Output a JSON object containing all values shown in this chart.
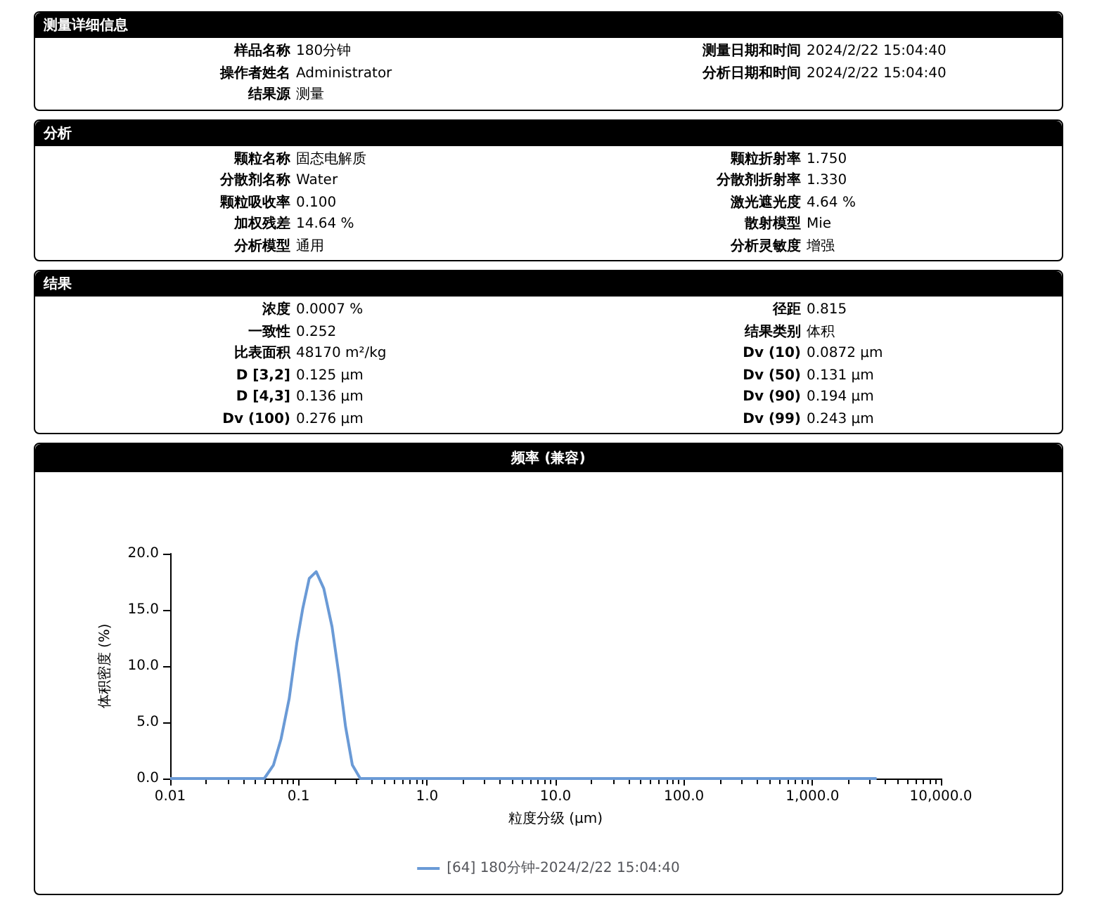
{
  "chart_data": [
    {
      "type": "other",
      "title": "测量详细信息",
      "annotations": [
        "样品名称",
        "180分钟",
        "测量日期和时间",
        "2024/2/22 15:04:40",
        "操作者姓名",
        "Administrator",
        "分析日期和时间",
        "2024/2/22 15:04:40",
        "结果源",
        "测量"
      ]
    },
    {
      "type": "other",
      "title": "分析",
      "annotations": [
        "颗粒名称",
        "固态电解质",
        "颗粒折射率",
        "1.750",
        "分散剂名称",
        "Water",
        "分散剂折射率",
        "1.330",
        "颗粒吸收率",
        "0.100",
        "激光遮光度",
        "4.64 %",
        "加权残差",
        "14.64 %",
        "散射模型",
        "Mie",
        "分析模型",
        "通用",
        "分析灵敏度",
        "增强"
      ]
    },
    {
      "type": "other",
      "title": "结果",
      "annotations": [
        "浓度",
        "0.0007 %",
        "径距",
        "0.815",
        "一致性",
        "0.252",
        "结果类别",
        "体积",
        "比表面积",
        "48170 m²/kg",
        "Dv  (10)",
        "0.0872 μm",
        "D [3,2]",
        "0.125 μm",
        "Dv  (50)",
        "0.131 μm",
        "D [4,3]",
        "0.136 μm",
        "Dv  (90)",
        "0.194 μm",
        "Dv  (100)",
        "0.276 μm",
        "Dv  (99)",
        "0.243 μm"
      ]
    },
    {
      "type": "line",
      "title": "频率 (兼容)",
      "xlabel": "粒度分级 (μm)",
      "ylabel": "体积密度 (%)",
      "log": "x",
      "marker": "none",
      "line_style": "solid",
      "grid": false,
      "legend": "bottom",
      "xlim": [
        0.01,
        10000
      ],
      "xticks": [
        0.01,
        0.1,
        {
          "value": 1,
          "label": "1.0"
        },
        {
          "value": 10,
          "label": "10.0"
        },
        {
          "value": 100,
          "label": "100.0"
        },
        {
          "value": 1000,
          "label": "1,000.0"
        },
        {
          "value": 10000,
          "label": "10,000.0"
        }
      ],
      "ylim": [
        0,
        20
      ],
      "yticks": [
        {
          "value": 0,
          "label": "0.0"
        },
        {
          "value": 5,
          "label": "5.0"
        },
        {
          "value": 10,
          "label": "10.0"
        },
        {
          "value": 15,
          "label": "15.0"
        },
        {
          "value": 20,
          "label": "20.0"
        }
      ],
      "series": [
        {
          "name": "[64] 180分钟-2024/2/22 15:04:40",
          "color": "#6a9ad6",
          "x": [
            0.01,
            0.054,
            0.0637,
            0.0729,
            0.0844,
            0.0969,
            0.1076,
            0.121,
            0.137,
            0.157,
            0.182,
            0.206,
            0.232,
            0.262,
            0.302,
            3160
          ],
          "values": [
            0,
            0,
            1.2,
            3.5,
            7.1,
            12.1,
            15.1,
            17.8,
            18.4,
            16.9,
            13.5,
            9.2,
            4.6,
            1.2,
            0,
            0
          ]
        }
      ]
    }
  ]
}
